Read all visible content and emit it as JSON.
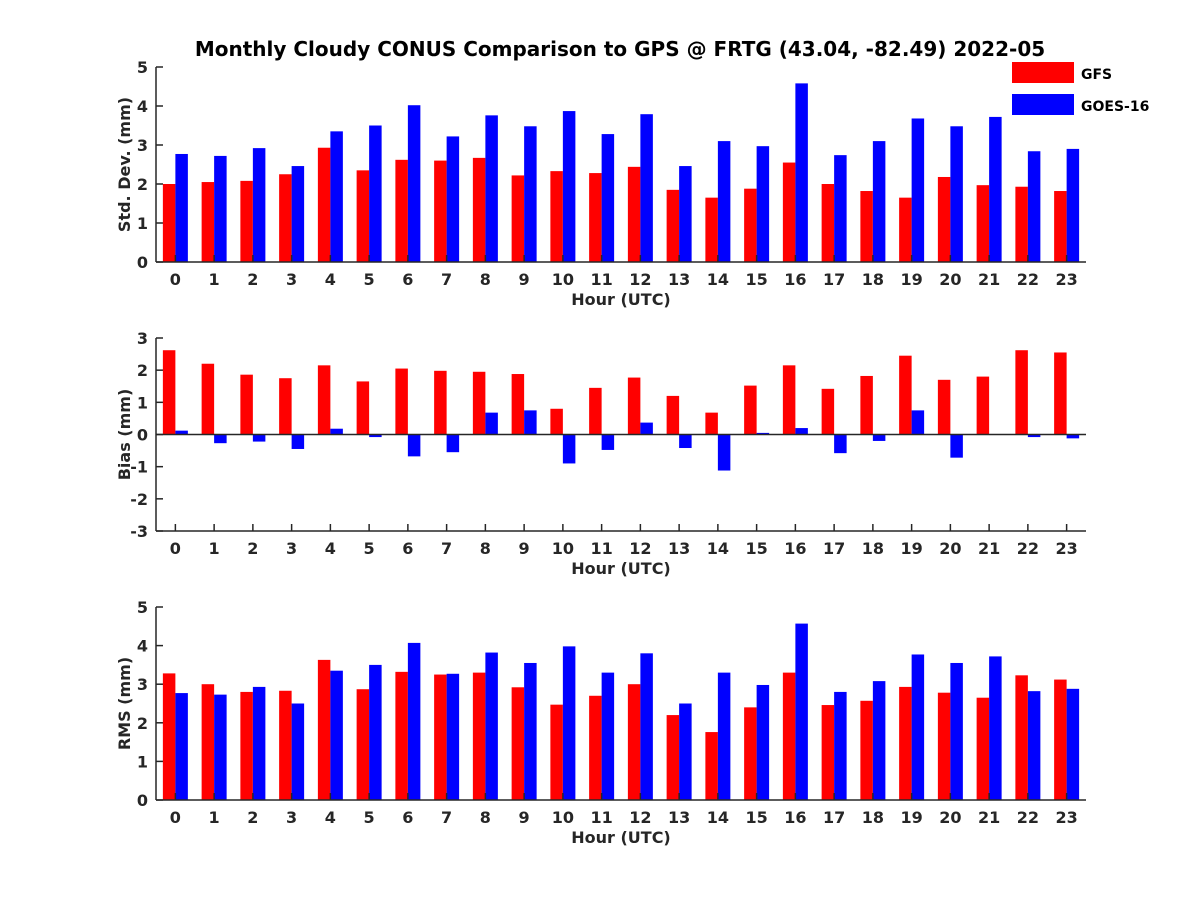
{
  "chart_data": {
    "title": "Monthly Cloudy CONUS Comparison to GPS @ FRTG (43.04, -82.49) 2022-05",
    "type": "bar",
    "legend": {
      "placement": "top-right",
      "entries": [
        "GFS",
        "GOES-16"
      ]
    },
    "colors": {
      "GFS": "#ff0000",
      "GOES-16": "#0000ff",
      "axis": "#262626"
    },
    "panels": [
      {
        "id": "std",
        "type": "bar",
        "xlabel": "Hour (UTC)",
        "ylabel": "Std. Dev. (mm)",
        "ylim": [
          0,
          5
        ],
        "yticks": [
          0,
          1,
          2,
          3,
          4,
          5
        ],
        "categories": [
          "0",
          "1",
          "2",
          "3",
          "4",
          "5",
          "6",
          "7",
          "8",
          "9",
          "10",
          "11",
          "12",
          "13",
          "14",
          "15",
          "16",
          "17",
          "18",
          "19",
          "20",
          "21",
          "22",
          "23"
        ],
        "series": [
          {
            "name": "GFS",
            "values": [
              2.0,
              2.05,
              2.08,
              2.25,
              2.93,
              2.35,
              2.62,
              2.6,
              2.67,
              2.22,
              2.33,
              2.28,
              2.44,
              1.85,
              1.65,
              1.88,
              2.55,
              2.0,
              1.82,
              1.65,
              2.18,
              1.97,
              1.93,
              1.82
            ]
          },
          {
            "name": "GOES-16",
            "values": [
              2.77,
              2.72,
              2.92,
              2.46,
              3.35,
              3.5,
              4.02,
              3.22,
              3.76,
              3.48,
              3.87,
              3.28,
              3.79,
              2.46,
              3.1,
              2.97,
              4.58,
              2.74,
              3.1,
              3.68,
              3.48,
              3.72,
              2.84,
              2.9
            ]
          }
        ]
      },
      {
        "id": "bias",
        "type": "bar",
        "xlabel": "Hour (UTC)",
        "ylabel": "Bias (mm)",
        "ylim": [
          -3,
          3
        ],
        "yticks": [
          -3,
          -2,
          -1,
          0,
          1,
          2,
          3
        ],
        "categories": [
          "0",
          "1",
          "2",
          "3",
          "4",
          "5",
          "6",
          "7",
          "8",
          "9",
          "10",
          "11",
          "12",
          "13",
          "14",
          "15",
          "16",
          "17",
          "18",
          "19",
          "20",
          "21",
          "22",
          "23"
        ],
        "series": [
          {
            "name": "GFS",
            "values": [
              2.62,
              2.2,
              1.86,
              1.75,
              2.15,
              1.65,
              2.05,
              1.98,
              1.95,
              1.88,
              0.8,
              1.45,
              1.77,
              1.2,
              0.68,
              1.52,
              2.15,
              1.42,
              1.82,
              2.45,
              1.7,
              1.8,
              2.62,
              2.55
            ]
          },
          {
            "name": "GOES-16",
            "values": [
              0.12,
              -0.27,
              -0.22,
              -0.45,
              0.18,
              -0.08,
              -0.68,
              -0.55,
              0.68,
              0.75,
              -0.9,
              -0.48,
              0.37,
              -0.42,
              -1.12,
              0.05,
              0.2,
              -0.58,
              -0.2,
              0.75,
              -0.72,
              0.0,
              -0.08,
              -0.12
            ]
          }
        ]
      },
      {
        "id": "rms",
        "type": "bar",
        "xlabel": "Hour (UTC)",
        "ylabel": "RMS (mm)",
        "ylim": [
          0,
          5
        ],
        "yticks": [
          0,
          1,
          2,
          3,
          4,
          5
        ],
        "categories": [
          "0",
          "1",
          "2",
          "3",
          "4",
          "5",
          "6",
          "7",
          "8",
          "9",
          "10",
          "11",
          "12",
          "13",
          "14",
          "15",
          "16",
          "17",
          "18",
          "19",
          "20",
          "21",
          "22",
          "23"
        ],
        "series": [
          {
            "name": "GFS",
            "values": [
              3.28,
              3.0,
              2.8,
              2.83,
              3.63,
              2.87,
              3.32,
              3.25,
              3.3,
              2.92,
              2.47,
              2.7,
              3.0,
              2.2,
              1.76,
              2.4,
              3.3,
              2.46,
              2.57,
              2.93,
              2.78,
              2.65,
              3.23,
              3.12
            ]
          },
          {
            "name": "GOES-16",
            "values": [
              2.77,
              2.73,
              2.93,
              2.5,
              3.35,
              3.5,
              4.07,
              3.27,
              3.82,
              3.55,
              3.98,
              3.3,
              3.8,
              2.5,
              3.3,
              2.98,
              4.57,
              2.8,
              3.08,
              3.77,
              3.55,
              3.72,
              2.82,
              2.88
            ]
          }
        ]
      }
    ]
  }
}
